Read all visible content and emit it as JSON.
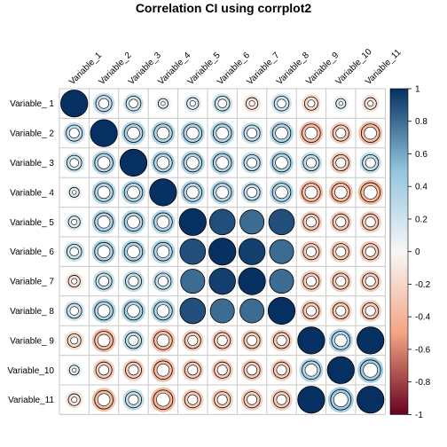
{
  "chart_data": {
    "type": "heatmap",
    "title": "Correlation CI using corrplot2",
    "variables": [
      "Variable_ 1",
      "Variable_ 2",
      "Variable_ 3",
      "Variable_ 4",
      "Variable_ 5",
      "Variable_ 6",
      "Variable_ 7",
      "Variable_ 8",
      "Variable_ 9",
      "Variable_10",
      "Variable_11"
    ],
    "correlations": [
      [
        1.0,
        0.3,
        0.25,
        0.1,
        0.15,
        0.25,
        -0.15,
        0.25,
        -0.2,
        0.1,
        -0.15
      ],
      [
        0.3,
        1.0,
        0.4,
        0.4,
        0.4,
        0.4,
        0.3,
        0.4,
        -0.4,
        -0.3,
        -0.4
      ],
      [
        0.25,
        0.4,
        1.0,
        0.4,
        0.4,
        0.4,
        0.3,
        0.4,
        0.3,
        -0.3,
        0.3
      ],
      [
        0.1,
        0.4,
        0.4,
        1.0,
        0.4,
        0.4,
        0.3,
        0.4,
        -0.4,
        -0.4,
        -0.45
      ],
      [
        0.15,
        0.4,
        0.4,
        0.4,
        1.0,
        0.9,
        0.8,
        0.9,
        -0.3,
        -0.3,
        -0.3
      ],
      [
        0.25,
        0.4,
        0.4,
        0.4,
        0.9,
        1.0,
        0.95,
        0.8,
        -0.3,
        -0.3,
        -0.3
      ],
      [
        -0.15,
        0.3,
        0.3,
        0.3,
        0.8,
        0.95,
        1.0,
        0.8,
        -0.3,
        -0.3,
        -0.3
      ],
      [
        0.25,
        0.4,
        0.4,
        0.4,
        0.9,
        0.8,
        0.8,
        1.0,
        -0.3,
        -0.3,
        -0.3
      ],
      [
        -0.2,
        -0.4,
        0.3,
        -0.4,
        -0.3,
        -0.3,
        -0.3,
        -0.3,
        1.0,
        0.4,
        1.0
      ],
      [
        0.1,
        -0.3,
        -0.3,
        -0.4,
        -0.3,
        -0.3,
        -0.3,
        -0.3,
        0.4,
        1.0,
        0.5
      ],
      [
        -0.15,
        -0.4,
        0.3,
        -0.45,
        -0.3,
        -0.3,
        -0.3,
        -0.3,
        1.0,
        0.5,
        1.0
      ]
    ],
    "colorbar": {
      "min": -1,
      "max": 1,
      "ticks": [
        "1",
        "0.8",
        "0.6",
        "0.4",
        "0.2",
        "0",
        "-0.2",
        "-0.4",
        "-0.6",
        "-0.8",
        "-1"
      ]
    },
    "colors": {
      "low": "#67001F",
      "mid_low": "#F4A582",
      "mid": "#F7F7F7",
      "mid_high": "#92C5DE",
      "high": "#053061"
    },
    "legend_placement": "right",
    "grid": true
  }
}
